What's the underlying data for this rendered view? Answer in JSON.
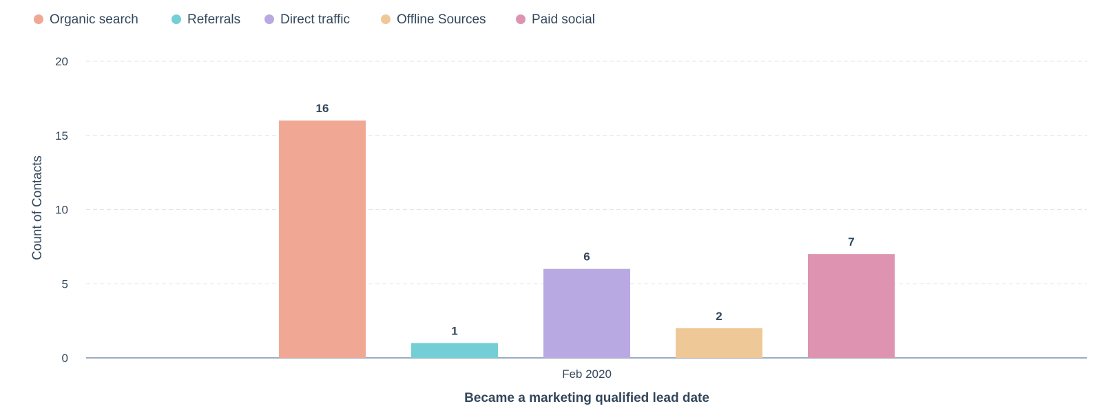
{
  "chart_data": {
    "type": "bar",
    "categories": [
      "Feb 2020"
    ],
    "series": [
      {
        "name": "Organic search",
        "values": [
          16
        ],
        "color": "#f0a894"
      },
      {
        "name": "Referrals",
        "values": [
          1
        ],
        "color": "#73cfd5"
      },
      {
        "name": "Direct traffic",
        "values": [
          6
        ],
        "color": "#b8a9e3"
      },
      {
        "name": "Offline Sources",
        "values": [
          2
        ],
        "color": "#efc897"
      },
      {
        "name": "Paid social",
        "values": [
          7
        ],
        "color": "#de94b0"
      }
    ],
    "xlabel": "Became a marketing qualified lead date",
    "ylabel": "Count of Contacts",
    "ylim": [
      0,
      20
    ],
    "yticks": [
      0,
      5,
      10,
      15,
      20
    ],
    "grid": true,
    "legend_position": "top-left",
    "data_labels": true
  }
}
